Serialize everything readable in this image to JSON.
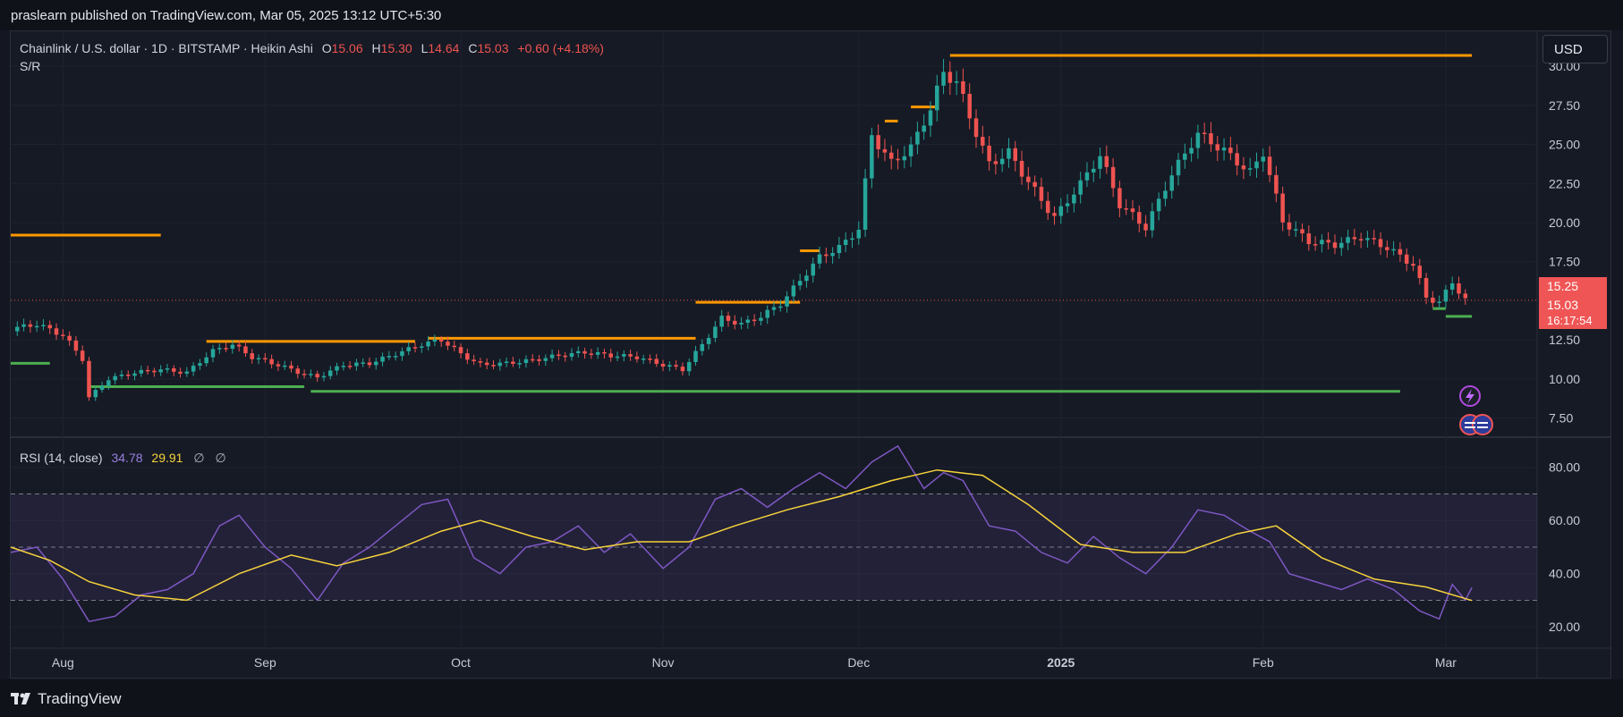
{
  "header": {
    "published": "praslearn published on TradingView.com, Mar 05, 2025 13:12 UTC+5:30"
  },
  "legend": {
    "symbol": "Chainlink / U.S. dollar · 1D · BITSTAMP · Heikin Ashi",
    "o_label": "O",
    "o_value": "15.06",
    "h_label": "H",
    "h_value": "15.30",
    "l_label": "L",
    "l_value": "14.64",
    "c_label": "C",
    "c_value": "15.03",
    "change": "+0.60 (+4.18%)",
    "indicator": "S/R"
  },
  "currency": "USD",
  "price_tags": {
    "high": "15.25",
    "last": "15.03",
    "countdown": "16:17:54"
  },
  "rsi_legend": {
    "label": "RSI (14, close)",
    "rsi": "34.78",
    "ma": "29.91",
    "empty1": "∅",
    "empty2": "∅"
  },
  "footer": {
    "brand": "TradingView"
  },
  "colors": {
    "background": "#161a25",
    "up": "#26a69a",
    "down": "#ef5350",
    "resistance": "#ff9800",
    "support": "#4caf50",
    "rsi_line": "#7e57c2",
    "rsi_ma": "#f7d23b",
    "text": "#d1d4dc",
    "axis_text": "#b2b5be"
  },
  "chart_data": [
    {
      "type": "candlestick",
      "style": "Heikin Ashi",
      "y_axis": {
        "ticks": [
          "30.00",
          "27.50",
          "25.00",
          "22.50",
          "20.00",
          "17.50",
          "12.50",
          "10.00",
          "7.50"
        ],
        "ylim": [
          6.5,
          31.5
        ]
      },
      "x_axis": {
        "ticks": [
          "Aug",
          "Sep",
          "Oct",
          "Nov",
          "Dec",
          "2025",
          "Feb",
          "Mar"
        ],
        "range": [
          "2024-07-24",
          "2025-03-15"
        ]
      },
      "grid": true,
      "series": [
        {
          "points": [
            [
              "2024-07-24",
              13.2
            ],
            [
              "2024-07-28",
              13.5
            ],
            [
              "2024-08-01",
              12.8
            ],
            [
              "2024-08-04",
              11.3
            ],
            [
              "2024-08-05",
              8.8
            ],
            [
              "2024-08-08",
              10.0
            ],
            [
              "2024-08-12",
              10.4
            ],
            [
              "2024-08-16",
              10.6
            ],
            [
              "2024-08-20",
              10.4
            ],
            [
              "2024-08-24",
              11.8
            ],
            [
              "2024-08-27",
              12.2
            ],
            [
              "2024-08-30",
              11.4
            ],
            [
              "2024-09-03",
              10.9
            ],
            [
              "2024-09-07",
              10.3
            ],
            [
              "2024-09-09",
              10.1
            ],
            [
              "2024-09-13",
              10.9
            ],
            [
              "2024-09-17",
              11.0
            ],
            [
              "2024-09-21",
              11.6
            ],
            [
              "2024-09-25",
              12.2
            ],
            [
              "2024-09-28",
              12.5
            ],
            [
              "2024-10-01",
              11.6
            ],
            [
              "2024-10-04",
              10.9
            ],
            [
              "2024-10-08",
              11.0
            ],
            [
              "2024-10-12",
              11.2
            ],
            [
              "2024-10-16",
              11.5
            ],
            [
              "2024-10-20",
              11.7
            ],
            [
              "2024-10-24",
              11.5
            ],
            [
              "2024-10-28",
              11.4
            ],
            [
              "2024-11-01",
              10.9
            ],
            [
              "2024-11-04",
              10.6
            ],
            [
              "2024-11-07",
              12.2
            ],
            [
              "2024-11-10",
              13.9
            ],
            [
              "2024-11-13",
              13.5
            ],
            [
              "2024-11-16",
              14.0
            ],
            [
              "2024-11-19",
              14.8
            ],
            [
              "2024-11-22",
              16.3
            ],
            [
              "2024-11-25",
              17.8
            ],
            [
              "2024-11-28",
              18.4
            ],
            [
              "2024-12-01",
              19.6
            ],
            [
              "2024-12-03",
              25.6
            ],
            [
              "2024-12-06",
              23.8
            ],
            [
              "2024-12-09",
              24.8
            ],
            [
              "2024-12-12",
              27.3
            ],
            [
              "2024-12-14",
              29.6
            ],
            [
              "2024-12-16",
              29.0
            ],
            [
              "2024-12-18",
              26.8
            ],
            [
              "2024-12-21",
              23.7
            ],
            [
              "2024-12-24",
              24.5
            ],
            [
              "2024-12-27",
              22.6
            ],
            [
              "2024-12-31",
              20.3
            ],
            [
              "2025-01-04",
              22.5
            ],
            [
              "2025-01-07",
              24.3
            ],
            [
              "2025-01-10",
              21.2
            ],
            [
              "2025-01-14",
              19.7
            ],
            [
              "2025-01-18",
              23.1
            ],
            [
              "2025-01-22",
              25.7
            ],
            [
              "2025-01-26",
              24.6
            ],
            [
              "2025-01-30",
              23.2
            ],
            [
              "2025-02-01",
              24.5
            ],
            [
              "2025-02-04",
              20.1
            ],
            [
              "2025-02-08",
              18.8
            ],
            [
              "2025-02-12",
              18.6
            ],
            [
              "2025-02-16",
              19.1
            ],
            [
              "2025-02-20",
              18.4
            ],
            [
              "2025-02-24",
              17.3
            ],
            [
              "2025-02-26",
              15.2
            ],
            [
              "2025-02-28",
              14.9
            ],
            [
              "2025-03-02",
              16.2
            ],
            [
              "2025-03-04",
              15.03
            ]
          ]
        }
      ],
      "support_resistance": {
        "resistance": [
          {
            "from": "2024-07-24",
            "to": "2024-08-16",
            "level": 19.2
          },
          {
            "from": "2024-08-23",
            "to": "2024-09-24",
            "level": 12.4
          },
          {
            "from": "2024-09-26",
            "to": "2024-11-06",
            "level": 12.6
          },
          {
            "from": "2024-11-06",
            "to": "2024-11-22",
            "level": 14.9
          },
          {
            "from": "2024-11-22",
            "to": "2024-11-25",
            "level": 18.2
          },
          {
            "from": "2024-12-05",
            "to": "2024-12-07",
            "level": 26.5
          },
          {
            "from": "2024-12-09",
            "to": "2024-12-13",
            "level": 27.4
          },
          {
            "from": "2024-12-15",
            "to": "2025-03-05",
            "level": 30.7
          }
        ],
        "support": [
          {
            "from": "2024-07-24",
            "to": "2024-07-30",
            "level": 11.0
          },
          {
            "from": "2024-08-05",
            "to": "2024-09-07",
            "level": 9.5
          },
          {
            "from": "2024-09-08",
            "to": "2025-02-22",
            "level": 9.2
          },
          {
            "from": "2025-02-27",
            "to": "2025-03-01",
            "level": 14.5
          },
          {
            "from": "2025-03-01",
            "to": "2025-03-05",
            "level": 14.0
          }
        ]
      }
    },
    {
      "type": "line",
      "title": "RSI (14, close)",
      "y_axis": {
        "ticks": [
          "80.00",
          "60.00",
          "40.00",
          "20.00"
        ],
        "ylim": [
          13,
          90
        ]
      },
      "bands": {
        "upper": 70,
        "middle": 50,
        "lower": 30
      },
      "series": [
        {
          "name": "RSI",
          "points": [
            [
              "2024-07-24",
              48
            ],
            [
              "2024-07-28",
              50
            ],
            [
              "2024-08-01",
              38
            ],
            [
              "2024-08-05",
              22
            ],
            [
              "2024-08-09",
              24
            ],
            [
              "2024-08-13",
              32
            ],
            [
              "2024-08-17",
              34
            ],
            [
              "2024-08-21",
              40
            ],
            [
              "2024-08-25",
              58
            ],
            [
              "2024-08-28",
              62
            ],
            [
              "2024-09-01",
              50
            ],
            [
              "2024-09-05",
              42
            ],
            [
              "2024-09-09",
              30
            ],
            [
              "2024-09-13",
              44
            ],
            [
              "2024-09-17",
              50
            ],
            [
              "2024-09-21",
              58
            ],
            [
              "2024-09-25",
              66
            ],
            [
              "2024-09-29",
              68
            ],
            [
              "2024-10-03",
              46
            ],
            [
              "2024-10-07",
              40
            ],
            [
              "2024-10-11",
              50
            ],
            [
              "2024-10-15",
              52
            ],
            [
              "2024-10-19",
              58
            ],
            [
              "2024-10-23",
              48
            ],
            [
              "2024-10-27",
              55
            ],
            [
              "2024-11-01",
              42
            ],
            [
              "2024-11-05",
              50
            ],
            [
              "2024-11-09",
              68
            ],
            [
              "2024-11-13",
              72
            ],
            [
              "2024-11-17",
              65
            ],
            [
              "2024-11-21",
              72
            ],
            [
              "2024-11-25",
              78
            ],
            [
              "2024-11-29",
              72
            ],
            [
              "2024-12-03",
              82
            ],
            [
              "2024-12-07",
              88
            ],
            [
              "2024-12-11",
              72
            ],
            [
              "2024-12-14",
              78
            ],
            [
              "2024-12-17",
              75
            ],
            [
              "2024-12-21",
              58
            ],
            [
              "2024-12-25",
              56
            ],
            [
              "2024-12-29",
              48
            ],
            [
              "2025-01-02",
              44
            ],
            [
              "2025-01-06",
              54
            ],
            [
              "2025-01-10",
              46
            ],
            [
              "2025-01-14",
              40
            ],
            [
              "2025-01-18",
              50
            ],
            [
              "2025-01-22",
              64
            ],
            [
              "2025-01-26",
              62
            ],
            [
              "2025-01-30",
              56
            ],
            [
              "2025-02-02",
              52
            ],
            [
              "2025-02-05",
              40
            ],
            [
              "2025-02-09",
              37
            ],
            [
              "2025-02-13",
              34
            ],
            [
              "2025-02-17",
              38
            ],
            [
              "2025-02-21",
              34
            ],
            [
              "2025-02-25",
              26
            ],
            [
              "2025-02-28",
              23
            ],
            [
              "2025-03-02",
              36
            ],
            [
              "2025-03-04",
              30
            ],
            [
              "2025-03-05",
              34.78
            ]
          ]
        },
        {
          "name": "MA",
          "points": [
            [
              "2024-07-24",
              50
            ],
            [
              "2024-07-30",
              45
            ],
            [
              "2024-08-05",
              37
            ],
            [
              "2024-08-12",
              32
            ],
            [
              "2024-08-20",
              30
            ],
            [
              "2024-08-28",
              40
            ],
            [
              "2024-09-05",
              47
            ],
            [
              "2024-09-12",
              43
            ],
            [
              "2024-09-20",
              48
            ],
            [
              "2024-09-28",
              56
            ],
            [
              "2024-10-04",
              60
            ],
            [
              "2024-10-12",
              54
            ],
            [
              "2024-10-20",
              49
            ],
            [
              "2024-10-28",
              52
            ],
            [
              "2024-11-05",
              52
            ],
            [
              "2024-11-12",
              58
            ],
            [
              "2024-11-20",
              64
            ],
            [
              "2024-11-28",
              69
            ],
            [
              "2024-12-06",
              75
            ],
            [
              "2024-12-13",
              79
            ],
            [
              "2024-12-20",
              77
            ],
            [
              "2024-12-27",
              66
            ],
            [
              "2025-01-04",
              51
            ],
            [
              "2025-01-12",
              48
            ],
            [
              "2025-01-20",
              48
            ],
            [
              "2025-01-28",
              55
            ],
            [
              "2025-02-03",
              58
            ],
            [
              "2025-02-10",
              46
            ],
            [
              "2025-02-18",
              38
            ],
            [
              "2025-02-26",
              35
            ],
            [
              "2025-03-05",
              29.91
            ]
          ]
        }
      ]
    }
  ]
}
